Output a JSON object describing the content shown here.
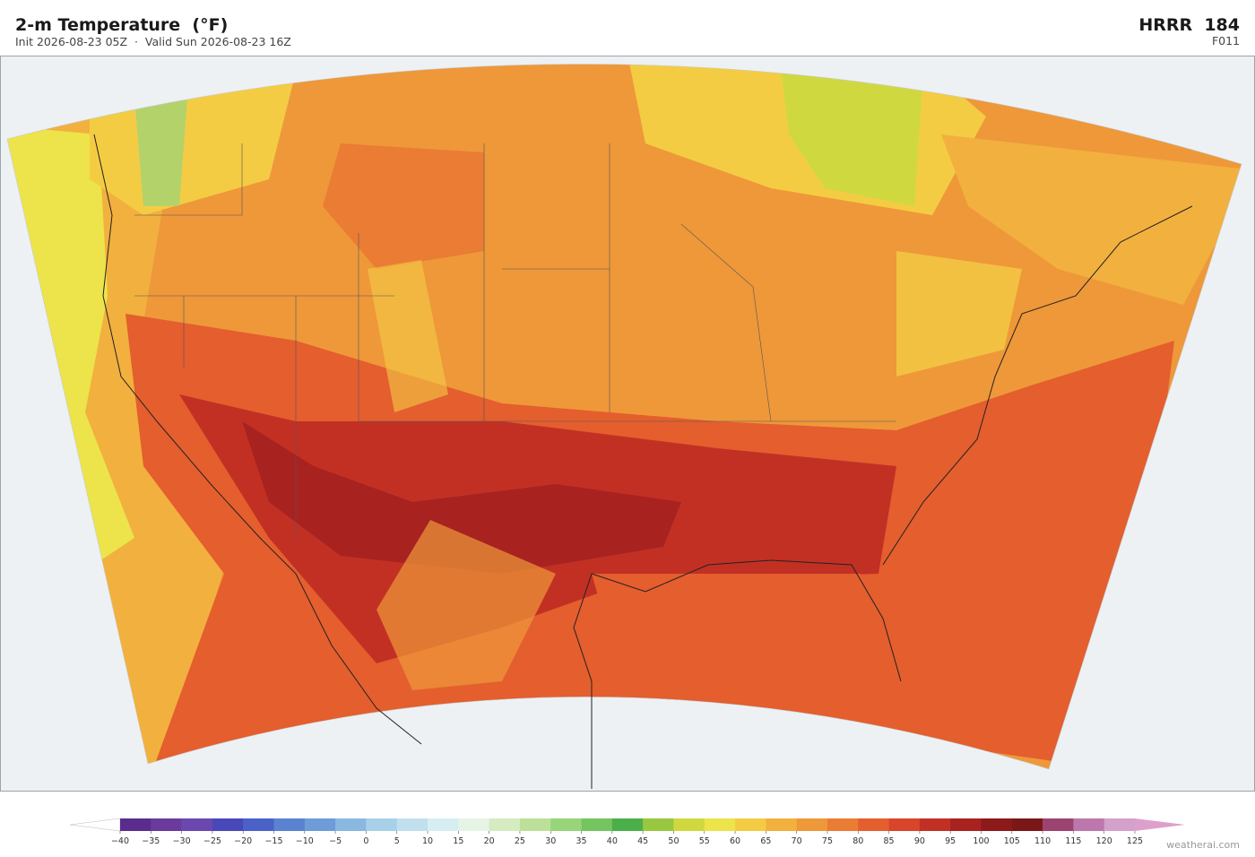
{
  "header": {
    "title": "2-m Temperature  (°F)",
    "subtitle": "Init 2026-08-23 05Z  ·  Valid Sun 2026-08-23 16Z",
    "model": "HRRR  184",
    "forecast_hour": "F011"
  },
  "colorbar": {
    "ticks": [
      {
        "value": -40,
        "label": "−40"
      },
      {
        "value": -35,
        "label": "−35"
      },
      {
        "value": -30,
        "label": "−30"
      },
      {
        "value": -25,
        "label": "−25"
      },
      {
        "value": -20,
        "label": "−20"
      },
      {
        "value": -15,
        "label": "−15"
      },
      {
        "value": -10,
        "label": "−10"
      },
      {
        "value": -5,
        "label": "−5"
      },
      0,
      5,
      10,
      15,
      20,
      25,
      30,
      35,
      40,
      45,
      50,
      55,
      60,
      65,
      70,
      75,
      80,
      85,
      90,
      95,
      100,
      105,
      110,
      115,
      120,
      125
    ],
    "colors": [
      "#5a2d8c",
      "#6a3a9c",
      "#6a48b0",
      "#4848b8",
      "#4a62c8",
      "#5a82d0",
      "#6e9cd8",
      "#8ab8e0",
      "#a8d0e8",
      "#c0e0ee",
      "#d6eef2",
      "#e6f4e6",
      "#d4ecc0",
      "#bce09a",
      "#98d47a",
      "#74c460",
      "#4cb04a",
      "#98c840",
      "#d0d840",
      "#ece44a",
      "#f4cc44",
      "#f2b03e",
      "#ee983a",
      "#ea7c34",
      "#e45e2e",
      "#d8452a",
      "#c23024",
      "#a82220",
      "#8c1a1a",
      "#7a1818",
      "#9c4470",
      "#bc78ac",
      "#d4a0cc"
    ],
    "under_color": "#ffffff",
    "over_color": "#dda0cc"
  },
  "watermark": "weatherai.com"
}
